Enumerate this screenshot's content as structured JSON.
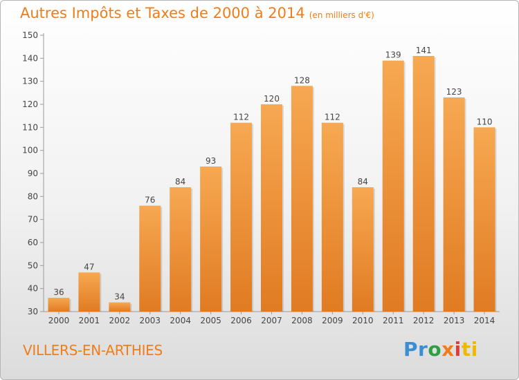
{
  "title": "Autres Impôts et Taxes de 2000 à 2014",
  "subtitle": "(en milliers d'€)",
  "commune": "VILLERS-EN-ARTHIES",
  "logo": {
    "p1": "Pr",
    "p2": "o",
    "p3": "x",
    "p4": "i",
    "p5": "ti"
  },
  "colors": {
    "accent": "#ef7d1a",
    "bar_top": "#f7a852",
    "bar_bottom": "#e07b22"
  },
  "chart_data": {
    "type": "bar",
    "categories": [
      "2000",
      "2001",
      "2002",
      "2003",
      "2004",
      "2005",
      "2006",
      "2007",
      "2008",
      "2009",
      "2010",
      "2011",
      "2012",
      "2013",
      "2014"
    ],
    "values": [
      36,
      47,
      34,
      76,
      84,
      93,
      112,
      120,
      128,
      112,
      84,
      139,
      141,
      123,
      110
    ],
    "ylim": [
      30,
      150
    ],
    "yticks": [
      30,
      40,
      50,
      60,
      70,
      80,
      90,
      100,
      110,
      120,
      130,
      140,
      150
    ],
    "grid": false,
    "data_labels": true
  }
}
